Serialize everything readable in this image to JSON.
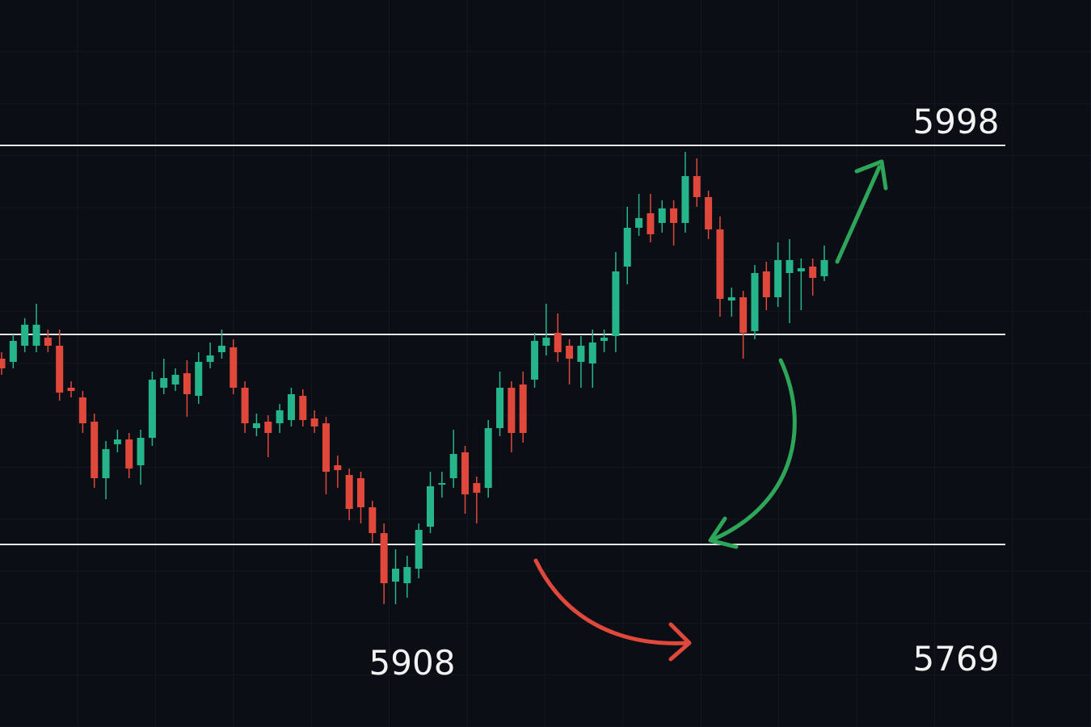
{
  "chart_data": {
    "type": "candlestick",
    "ylim": [
      5638,
      6088
    ],
    "up_color": "#26b58a",
    "down_color": "#e0483c",
    "open": [
      5866,
      5864,
      5874,
      5874,
      5879,
      5874,
      5848,
      5842,
      5827,
      5792,
      5813,
      5816,
      5800,
      5817,
      5848,
      5850,
      5857,
      5843,
      5864,
      5870,
      5873,
      5848,
      5823,
      5827,
      5826,
      5828,
      5843,
      5829,
      5826,
      5800,
      5794,
      5792,
      5774,
      5758,
      5728,
      5727,
      5736,
      5762,
      5788,
      5792,
      5808,
      5789,
      5786,
      5823,
      5848,
      5850,
      5853,
      5874,
      5882,
      5874,
      5864,
      5863,
      5877,
      5880,
      5923,
      5947,
      5956,
      5950,
      5959,
      5950,
      5979,
      5966,
      5946,
      5902,
      5904,
      5883,
      5920,
      5904,
      5919,
      5920,
      5923,
      5917
    ],
    "high": [
      5870,
      5881,
      5891,
      5900,
      5884,
      5884,
      5852,
      5846,
      5832,
      5815,
      5822,
      5820,
      5822,
      5858,
      5866,
      5860,
      5865,
      5870,
      5876,
      5884,
      5878,
      5852,
      5832,
      5831,
      5838,
      5848,
      5847,
      5834,
      5830,
      5806,
      5798,
      5796,
      5778,
      5764,
      5748,
      5744,
      5764,
      5796,
      5796,
      5822,
      5812,
      5793,
      5828,
      5858,
      5852,
      5858,
      5882,
      5900,
      5894,
      5878,
      5880,
      5884,
      5884,
      5932,
      5960,
      5968,
      5968,
      5964,
      5964,
      5994,
      5990,
      5970,
      5954,
      5910,
      5908,
      5924,
      5926,
      5938,
      5940,
      5928,
      5928,
      5936
    ],
    "low": [
      5856,
      5860,
      5870,
      5870,
      5870,
      5840,
      5842,
      5820,
      5786,
      5779,
      5808,
      5792,
      5788,
      5812,
      5844,
      5846,
      5830,
      5838,
      5860,
      5866,
      5844,
      5820,
      5818,
      5805,
      5820,
      5824,
      5824,
      5820,
      5782,
      5786,
      5766,
      5764,
      5752,
      5714,
      5714,
      5718,
      5730,
      5758,
      5780,
      5786,
      5770,
      5764,
      5780,
      5818,
      5808,
      5814,
      5848,
      5868,
      5864,
      5850,
      5848,
      5848,
      5870,
      5870,
      5912,
      5942,
      5938,
      5944,
      5936,
      5944,
      5960,
      5940,
      5892,
      5892,
      5866,
      5878,
      5896,
      5898,
      5888,
      5896,
      5905,
      5914
    ],
    "close": [
      5860,
      5877,
      5887,
      5887,
      5874,
      5845,
      5846,
      5826,
      5792,
      5810,
      5816,
      5798,
      5817,
      5853,
      5854,
      5856,
      5844,
      5864,
      5868,
      5874,
      5848,
      5826,
      5826,
      5820,
      5834,
      5844,
      5828,
      5824,
      5796,
      5797,
      5773,
      5774,
      5758,
      5727,
      5736,
      5737,
      5760,
      5787,
      5789,
      5807,
      5782,
      5783,
      5823,
      5848,
      5820,
      5820,
      5877,
      5879,
      5870,
      5866,
      5874,
      5876,
      5879,
      5920,
      5947,
      5953,
      5943,
      5959,
      5950,
      5979,
      5966,
      5946,
      5903,
      5904,
      5882,
      5919,
      5904,
      5927,
      5927,
      5922,
      5916,
      5927
    ],
    "levels": [
      5998,
      5881,
      5751
    ],
    "level_color": "#e6e6e6",
    "annotations": [
      5908,
      5769
    ]
  }
}
